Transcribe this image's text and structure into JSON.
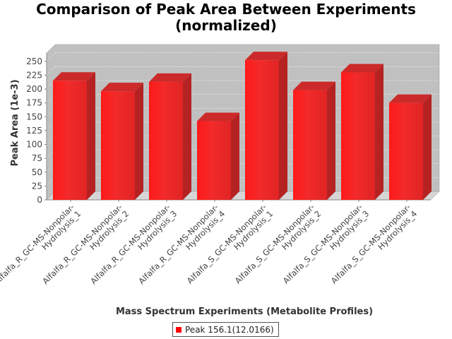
{
  "chart_data": {
    "type": "bar",
    "title_lines": [
      "Comparison of Peak Area Between Experiments",
      "(normalized)"
    ],
    "xlabel": "Mass Spectrum Experiments (Metabolite Profiles)",
    "ylabel": "Peak Area (1e-3)",
    "ylim": [
      0,
      265
    ],
    "yticks": [
      0,
      25,
      50,
      75,
      100,
      125,
      150,
      175,
      200,
      225,
      250
    ],
    "grid": true,
    "legend_position": "bottom",
    "categories": [
      [
        "Alfalfa_R_GC-MS-Nonpolar-",
        "Hydrolysis_1"
      ],
      [
        "Alfalfa_R_GC-MS-Nonpolar-",
        "Hydrolysis_2"
      ],
      [
        "Alfalfa_R_GC-MS-Nonpolar-",
        "Hydrolysis_3"
      ],
      [
        "Alfalfa_R_GC-MS-Nonpolar-",
        "Hydrolysis_4"
      ],
      [
        "Alfalfa_S_GC-MS-Nonpolar-",
        "Hydrolysis_1"
      ],
      [
        "Alfalfa_S_GC-MS-Nonpolar-",
        "Hydrolysis_2"
      ],
      [
        "Alfalfa_S_GC-MS-Nonpolar-",
        "Hydrolysis_3"
      ],
      [
        "Alfalfa_S_GC-MS-Nonpolar-",
        "Hydrolysis_4"
      ]
    ],
    "series": [
      {
        "name": "Peak 156.1(12.0166)",
        "color": "#ff0000",
        "values": [
          215,
          196,
          213,
          142,
          252,
          198,
          230,
          175
        ]
      }
    ]
  }
}
